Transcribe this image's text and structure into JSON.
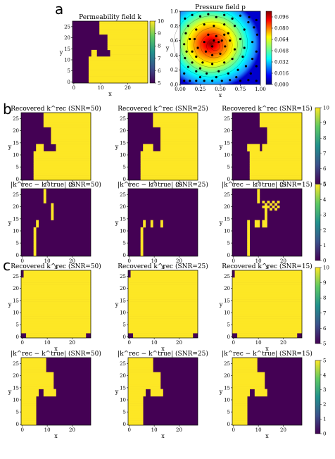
{
  "panel_labels": [
    "a",
    "b",
    "c"
  ],
  "chart_data": [
    {
      "id": "perm",
      "type": "heatmap",
      "grid": 28,
      "title": "Permeability field k",
      "xlabel": "x",
      "ylabel": "y",
      "xticks": [
        "0",
        "10",
        "20"
      ],
      "yticks": [
        "0",
        "5",
        "10",
        "15",
        "20",
        "25"
      ],
      "colorbar": {
        "colormap": "viridis",
        "min": 5,
        "max": 10,
        "ticks": [
          "5",
          "6",
          "7",
          "8",
          "9",
          "10"
        ]
      },
      "field": "true"
    },
    {
      "id": "pressure",
      "type": "heatmap",
      "title": "Pressure field p",
      "xlabel": "x",
      "ylabel": "y",
      "xticks": [
        "0.00",
        "0.25",
        "0.50",
        "0.75",
        "1.00"
      ],
      "yticks": [
        "0.0",
        "0.2",
        "0.4",
        "0.6",
        "0.8",
        "1.0"
      ],
      "colorbar": {
        "colormap": "jet",
        "min": 0.0,
        "max": 0.104,
        "ticks": [
          "0.000",
          "0.016",
          "0.032",
          "0.048",
          "0.064",
          "0.080",
          "0.096"
        ]
      },
      "peak": [
        0.38,
        0.56
      ],
      "sensors": [
        [
          0.05,
          0.05
        ],
        [
          0.12,
          0.05
        ],
        [
          0.2,
          0.05
        ],
        [
          0.3,
          0.05
        ],
        [
          0.4,
          0.05
        ],
        [
          0.52,
          0.05
        ],
        [
          0.62,
          0.06
        ],
        [
          0.75,
          0.05
        ],
        [
          0.85,
          0.06
        ],
        [
          0.95,
          0.05
        ],
        [
          0.05,
          0.15
        ],
        [
          0.1,
          0.24
        ],
        [
          0.06,
          0.36
        ],
        [
          0.08,
          0.45
        ],
        [
          0.05,
          0.55
        ],
        [
          0.12,
          0.62
        ],
        [
          0.07,
          0.7
        ],
        [
          0.1,
          0.8
        ],
        [
          0.06,
          0.9
        ],
        [
          0.15,
          0.95
        ],
        [
          0.25,
          0.93
        ],
        [
          0.35,
          0.96
        ],
        [
          0.45,
          0.92
        ],
        [
          0.55,
          0.95
        ],
        [
          0.65,
          0.9
        ],
        [
          0.75,
          0.94
        ],
        [
          0.86,
          0.92
        ],
        [
          0.95,
          0.88
        ],
        [
          0.92,
          0.78
        ],
        [
          0.96,
          0.68
        ],
        [
          0.9,
          0.58
        ],
        [
          0.95,
          0.45
        ],
        [
          0.9,
          0.35
        ],
        [
          0.95,
          0.25
        ],
        [
          0.88,
          0.15
        ],
        [
          0.2,
          0.18
        ],
        [
          0.33,
          0.15
        ],
        [
          0.48,
          0.18
        ],
        [
          0.6,
          0.15
        ],
        [
          0.72,
          0.2
        ],
        [
          0.82,
          0.25
        ],
        [
          0.78,
          0.38
        ],
        [
          0.8,
          0.5
        ],
        [
          0.75,
          0.62
        ],
        [
          0.8,
          0.75
        ],
        [
          0.68,
          0.8
        ],
        [
          0.55,
          0.82
        ],
        [
          0.42,
          0.8
        ],
        [
          0.3,
          0.82
        ],
        [
          0.2,
          0.75
        ],
        [
          0.18,
          0.62
        ],
        [
          0.22,
          0.5
        ],
        [
          0.2,
          0.38
        ],
        [
          0.28,
          0.3
        ],
        [
          0.4,
          0.28
        ],
        [
          0.55,
          0.3
        ],
        [
          0.65,
          0.35
        ],
        [
          0.68,
          0.48
        ],
        [
          0.62,
          0.6
        ],
        [
          0.55,
          0.68
        ],
        [
          0.45,
          0.66
        ],
        [
          0.35,
          0.68
        ],
        [
          0.3,
          0.58
        ],
        [
          0.32,
          0.45
        ],
        [
          0.4,
          0.4
        ],
        [
          0.5,
          0.42
        ],
        [
          0.56,
          0.52
        ],
        [
          0.48,
          0.58
        ],
        [
          0.4,
          0.52
        ],
        [
          0.42,
          0.6
        ],
        [
          0.52,
          0.6
        ],
        [
          0.6,
          0.7
        ],
        [
          0.25,
          0.22
        ],
        [
          0.15,
          0.3
        ],
        [
          0.85,
          0.85
        ],
        [
          0.7,
          0.1
        ],
        [
          0.45,
          0.1
        ],
        [
          0.25,
          0.1
        ],
        [
          0.15,
          0.45
        ]
      ]
    },
    {
      "id": "b_rec50",
      "type": "heatmap",
      "grid": 28,
      "title": "Recovered k^rec (SNR=50)",
      "xlabel": "x",
      "ylabel": "y",
      "xticks": [
        "0",
        "10",
        "20"
      ],
      "yticks": [
        "0",
        "5",
        "10",
        "15",
        "20",
        "25"
      ],
      "field": "b_rec",
      "variant": 0
    },
    {
      "id": "b_rec25",
      "type": "heatmap",
      "grid": 28,
      "title": "Recovered k^rec (SNR=25)",
      "xlabel": "x",
      "ylabel": "y",
      "xticks": [
        "0",
        "10",
        "20"
      ],
      "yticks": [
        "0",
        "5",
        "10",
        "15",
        "20",
        "25"
      ],
      "field": "b_rec",
      "variant": 1
    },
    {
      "id": "b_rec15",
      "type": "heatmap",
      "grid": 28,
      "title": "Recovered k^rec (SNR=15)",
      "xlabel": "x",
      "ylabel": "y",
      "xticks": [
        "0",
        "10",
        "20"
      ],
      "yticks": [
        "0",
        "5",
        "10",
        "15",
        "20",
        "25"
      ],
      "field": "b_rec",
      "variant": 2
    },
    {
      "id": "b_err50",
      "type": "heatmap",
      "grid": 28,
      "title": "|k^rec − k^true| (SNR=50)",
      "xlabel": "x",
      "ylabel": "y",
      "xticks": [
        "0",
        "10",
        "20"
      ],
      "yticks": [
        "0",
        "5",
        "10",
        "15",
        "20",
        "25"
      ],
      "field": "b_err",
      "variant": 0
    },
    {
      "id": "b_err25",
      "type": "heatmap",
      "grid": 28,
      "title": "|k^rec − k^true| (SNR=25)",
      "xlabel": "x",
      "ylabel": "y",
      "xticks": [
        "0",
        "10",
        "20"
      ],
      "yticks": [
        "0",
        "5",
        "10",
        "15",
        "20",
        "25"
      ],
      "field": "b_err",
      "variant": 1
    },
    {
      "id": "b_err15",
      "type": "heatmap",
      "grid": 28,
      "title": "|k^rec − k^true| (SNR=15)",
      "xlabel": "x",
      "ylabel": "y",
      "xticks": [
        "0",
        "10",
        "20"
      ],
      "yticks": [
        "0",
        "5",
        "10",
        "15",
        "20",
        "25"
      ],
      "field": "b_err",
      "variant": 2
    },
    {
      "id": "c_rec50",
      "type": "heatmap",
      "grid": 28,
      "title": "Recovered k^rec (SNR=50)",
      "xlabel": "x",
      "ylabel": "y",
      "xticks": [
        "0",
        "10",
        "20"
      ],
      "yticks": [
        "0",
        "5",
        "10",
        "15",
        "20",
        "25"
      ],
      "field": "c_rec",
      "variant": 0
    },
    {
      "id": "c_rec25",
      "type": "heatmap",
      "grid": 28,
      "title": "Recovered k^rec (SNR=25)",
      "xlabel": "x",
      "ylabel": "y",
      "xticks": [
        "0",
        "10",
        "20"
      ],
      "yticks": [
        "0",
        "5",
        "10",
        "15",
        "20",
        "25"
      ],
      "field": "c_rec",
      "variant": 1
    },
    {
      "id": "c_rec15",
      "type": "heatmap",
      "grid": 28,
      "title": "Recovered k^rec (SNR=15)",
      "xlabel": "x",
      "ylabel": "y",
      "xticks": [
        "0",
        "10",
        "20"
      ],
      "yticks": [
        "0",
        "5",
        "10",
        "15",
        "20",
        "25"
      ],
      "field": "c_rec",
      "variant": 2
    },
    {
      "id": "c_err50",
      "type": "heatmap",
      "grid": 28,
      "title": "|k^rec − k^true| (SNR=50)",
      "xlabel": "x",
      "ylabel": "y",
      "xticks": [
        "0",
        "10",
        "20"
      ],
      "yticks": [
        "0",
        "5",
        "10",
        "15",
        "20",
        "25"
      ],
      "field": "c_err",
      "variant": 0
    },
    {
      "id": "c_err25",
      "type": "heatmap",
      "grid": 28,
      "title": "|k^rec − k^true| (SNR=25)",
      "xlabel": "x",
      "ylabel": "y",
      "xticks": [
        "0",
        "10",
        "20"
      ],
      "yticks": [
        "0",
        "5",
        "10",
        "15",
        "20",
        "25"
      ],
      "field": "c_err",
      "variant": 1
    },
    {
      "id": "c_err15",
      "type": "heatmap",
      "grid": 28,
      "title": "|k^rec − k^true| (SNR=15)",
      "xlabel": "x",
      "ylabel": "y",
      "xticks": [
        "0",
        "10",
        "20"
      ],
      "yticks": [
        "0",
        "5",
        "10",
        "15",
        "20",
        "25"
      ],
      "field": "c_err",
      "variant": 2
    }
  ],
  "colorbars": [
    {
      "id": "b_rec",
      "min": 5,
      "max": 10,
      "ticks": [
        "5",
        "6",
        "7",
        "8",
        "9",
        "10"
      ]
    },
    {
      "id": "b_err",
      "min": 0,
      "max": 5,
      "ticks": [
        "0",
        "1",
        "2",
        "3",
        "4",
        "5"
      ]
    },
    {
      "id": "c_rec",
      "min": 5,
      "max": 10,
      "ticks": [
        "5",
        "6",
        "7",
        "8",
        "9",
        "10"
      ]
    },
    {
      "id": "c_err",
      "min": 0,
      "max": 5,
      "ticks": [
        "0",
        "1",
        "2",
        "3",
        "4",
        "5"
      ]
    }
  ],
  "colors": {
    "low": "#440154",
    "high": "#fde725"
  }
}
